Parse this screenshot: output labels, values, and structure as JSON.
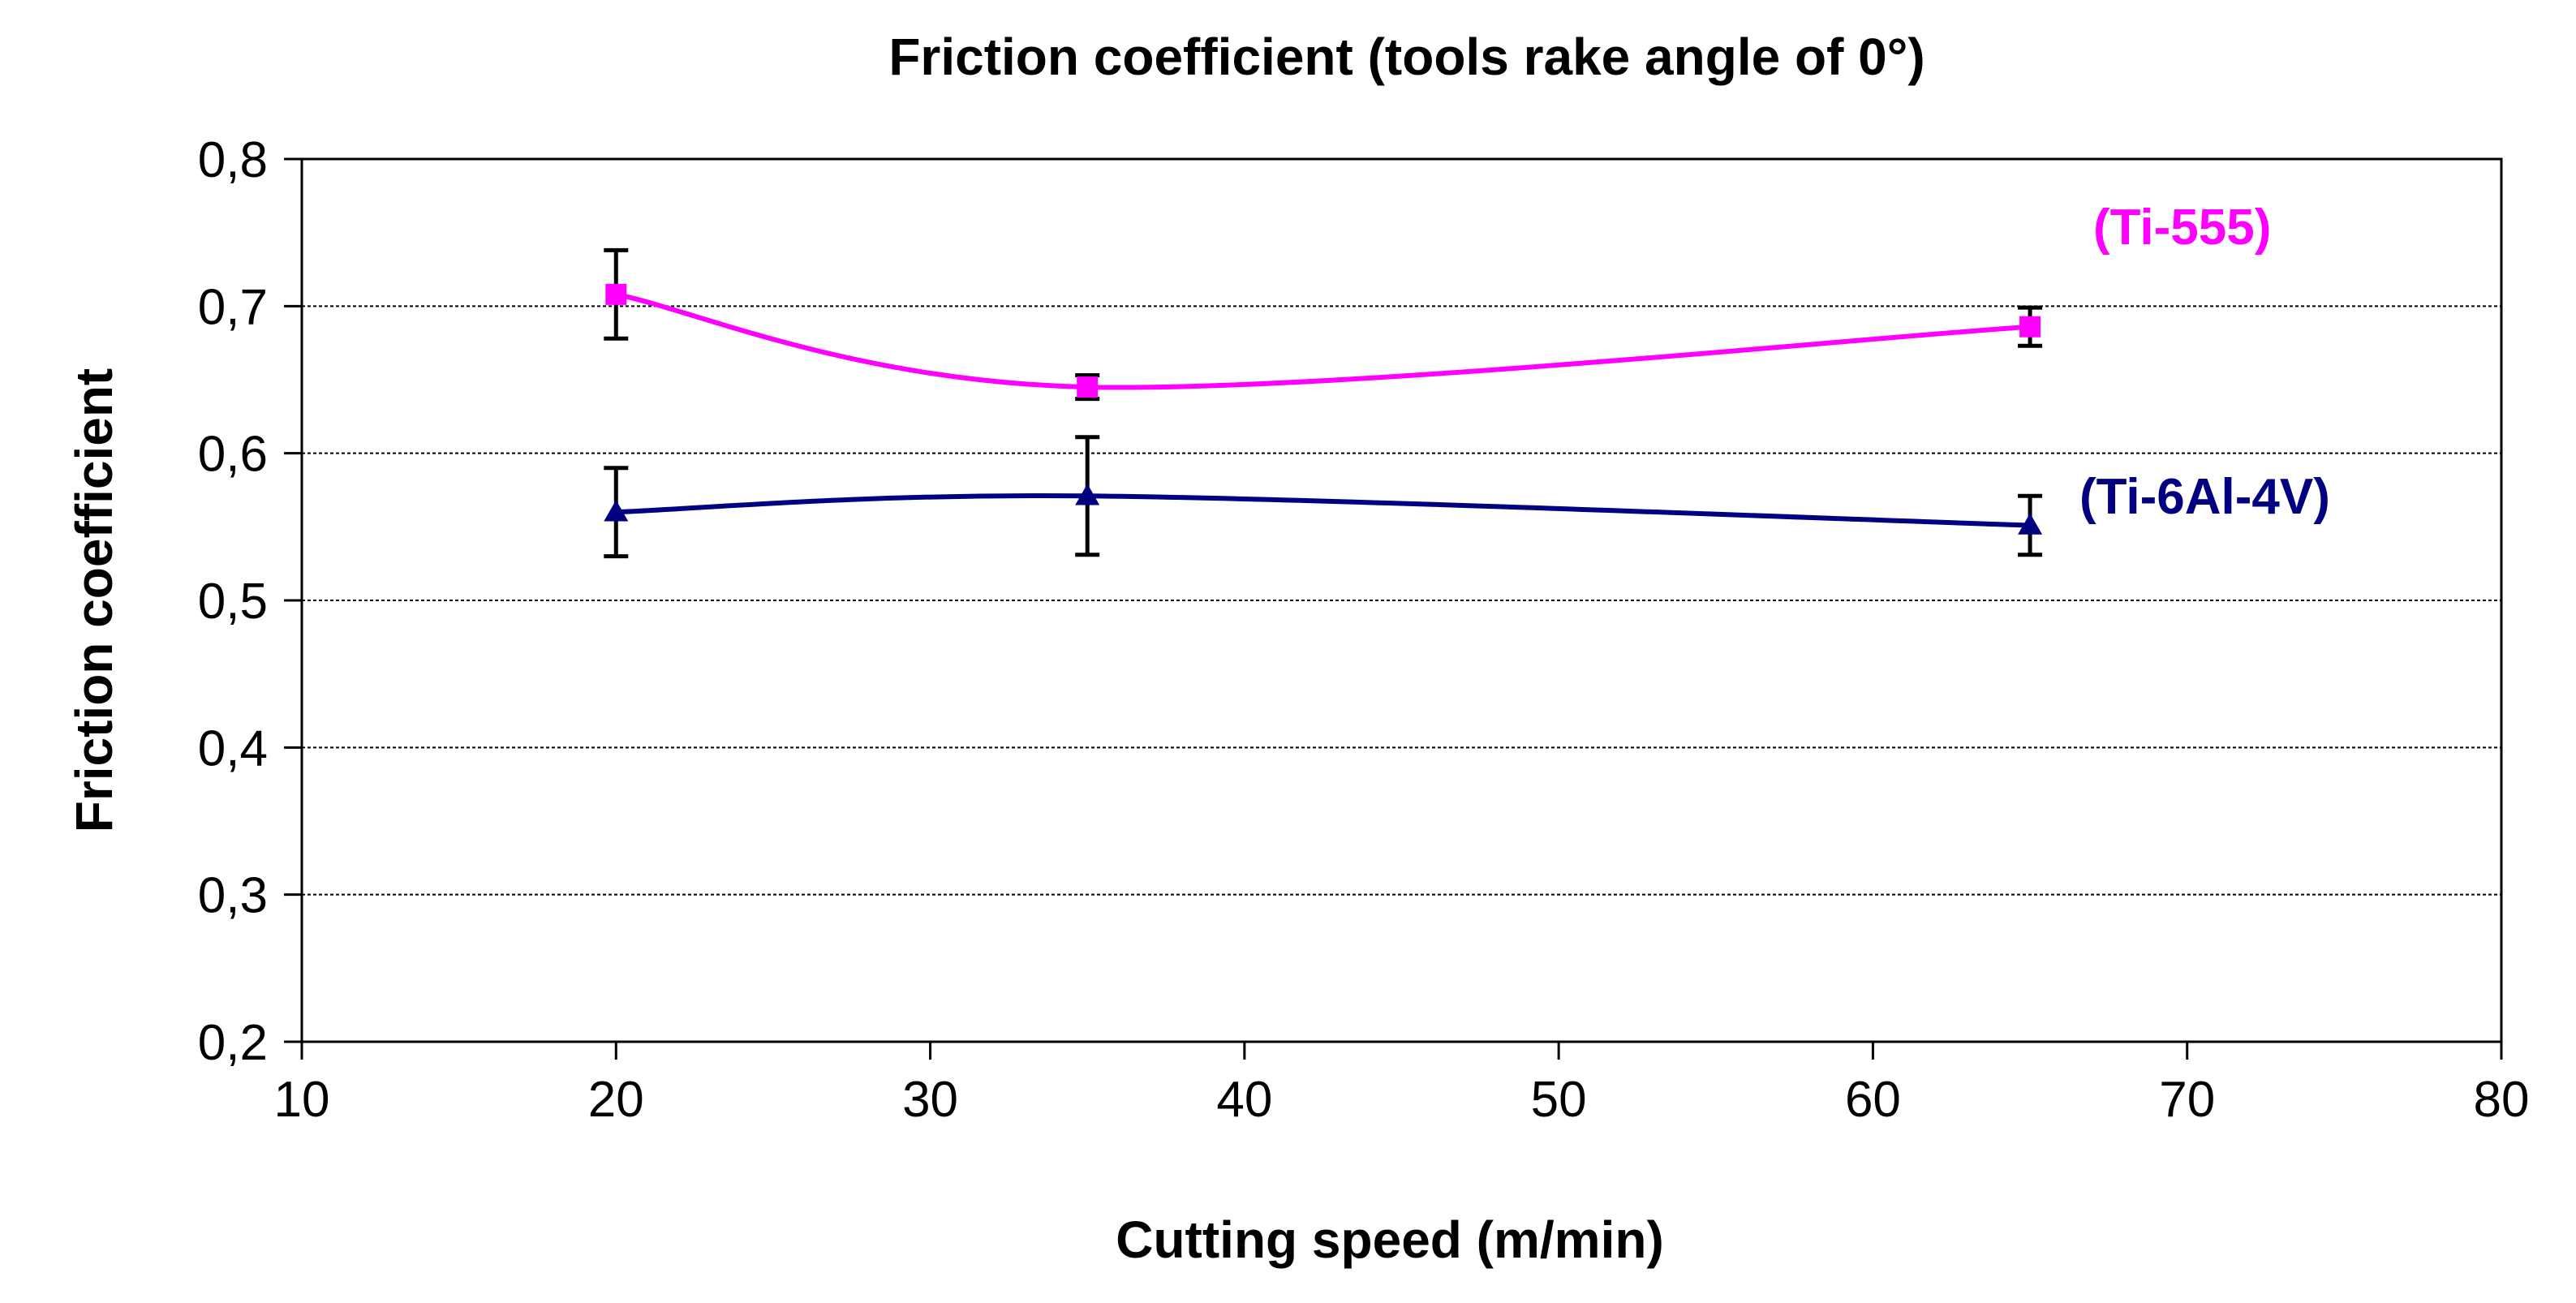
{
  "chart_data": {
    "type": "line",
    "title": "Friction coefficient (tools rake angle of 0°)",
    "xlabel": "Cutting speed (m/min)",
    "ylabel": "Friction coefficient",
    "xlim": [
      10,
      80
    ],
    "ylim": [
      0.2,
      0.8
    ],
    "xticks": [
      10,
      20,
      30,
      40,
      50,
      60,
      70,
      80
    ],
    "xtick_labels": [
      "10",
      "20",
      "30",
      "40",
      "50",
      "60",
      "70",
      "80"
    ],
    "yticks": [
      0.2,
      0.3,
      0.4,
      0.5,
      0.6,
      0.7,
      0.8
    ],
    "ytick_labels": [
      "0,2",
      "0,3",
      "0,4",
      "0,5",
      "0,6",
      "0,7",
      "0,8"
    ],
    "grid": "horizontal",
    "series": [
      {
        "name": "(Ti-555)",
        "color": "#ff00ff",
        "marker": "square",
        "x": [
          20,
          35,
          65
        ],
        "y": [
          0.708,
          0.645,
          0.686
        ],
        "err": [
          0.03,
          0.008,
          0.013
        ]
      },
      {
        "name": "(Ti-6Al-4V)",
        "color": "#000080",
        "marker": "triangle",
        "x": [
          20,
          35,
          65
        ],
        "y": [
          0.56,
          0.571,
          0.551
        ],
        "err": [
          0.03,
          0.04,
          0.02
        ]
      }
    ]
  }
}
